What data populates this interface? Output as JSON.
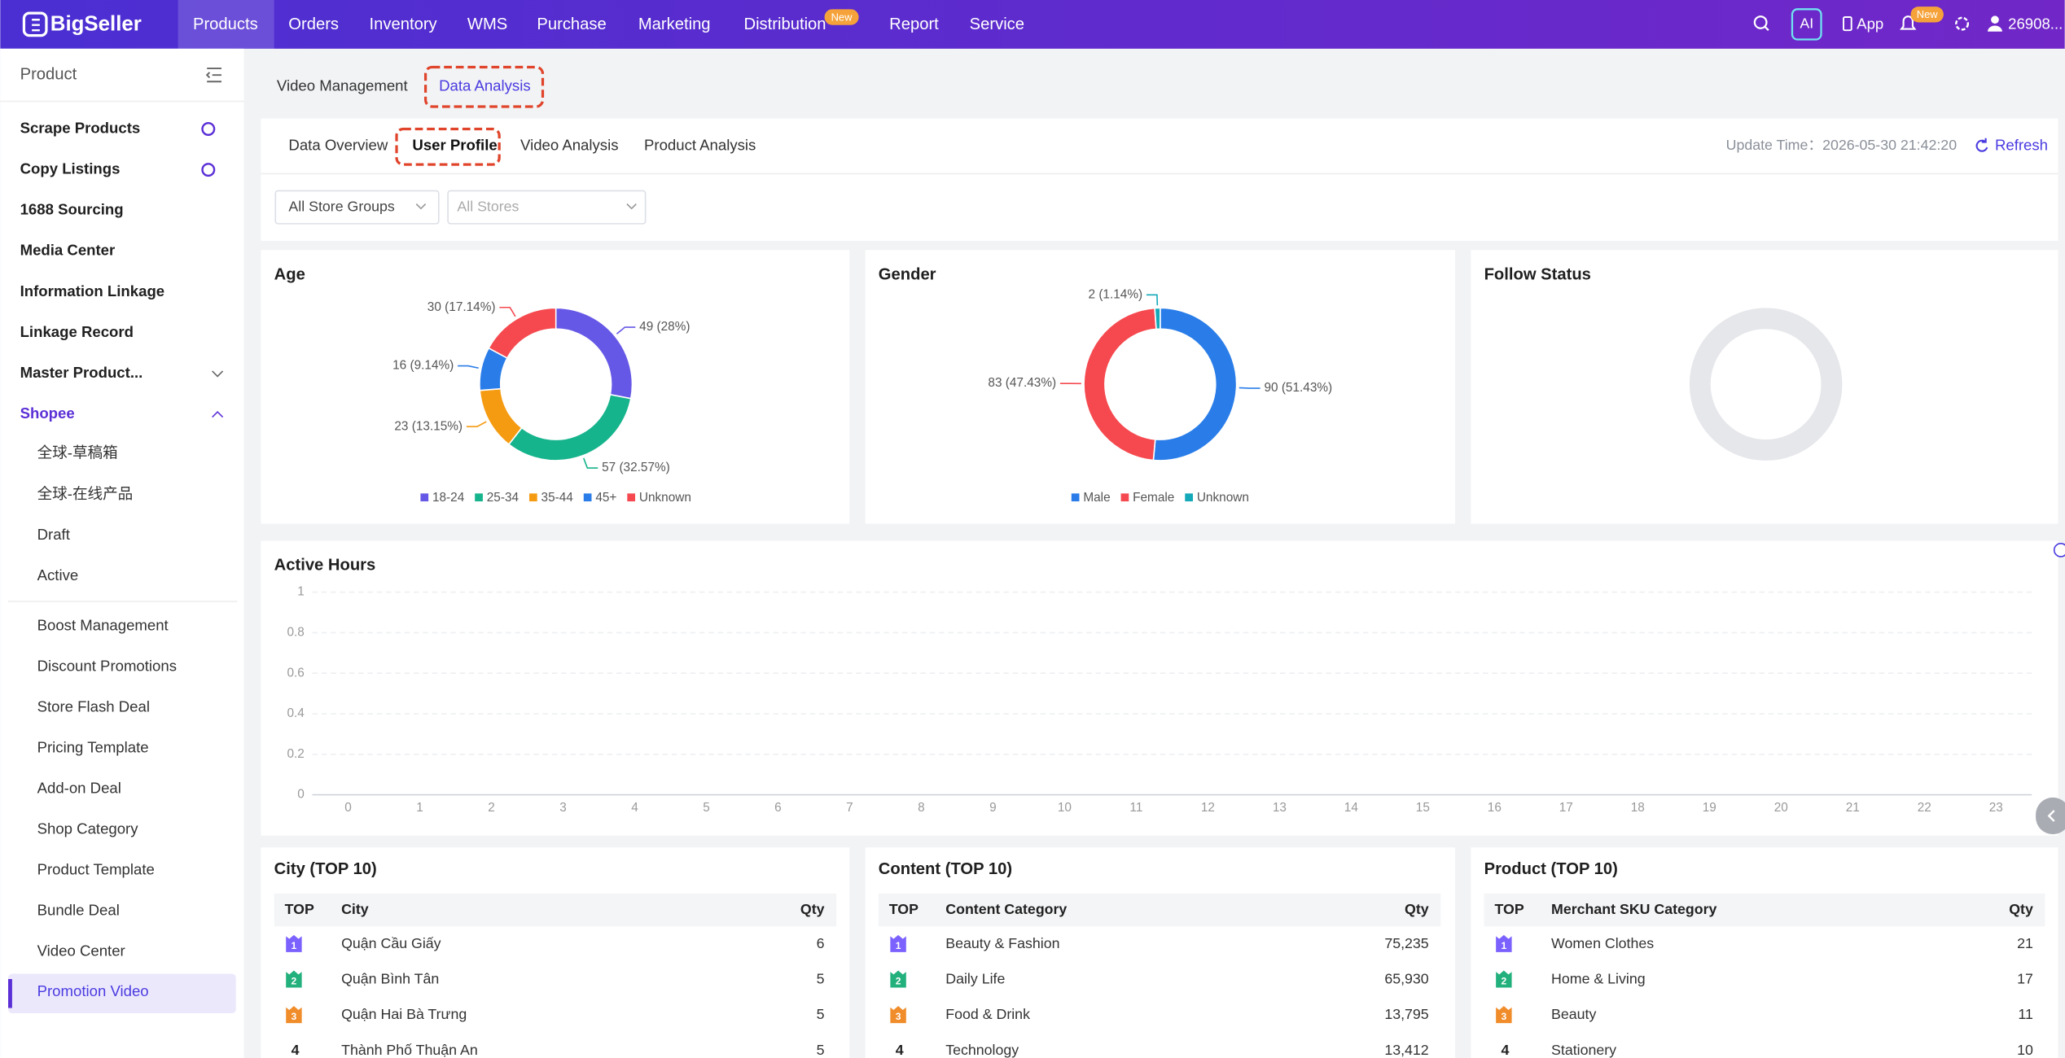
{
  "nav": {
    "logo": "BigSeller",
    "items": [
      "Products",
      "Orders",
      "Inventory",
      "WMS",
      "Purchase",
      "Marketing",
      "Distribution",
      "Report",
      "Service"
    ],
    "badge": "New",
    "ai": "AI",
    "app": "App",
    "bell_badge": "New",
    "user": "26908..."
  },
  "sidebar": {
    "title": "Product",
    "items": [
      "Scrape Products",
      "Copy Listings",
      "1688 Sourcing",
      "Media Center",
      "Information Linkage",
      "Linkage Record",
      "Master Product...",
      "Shopee"
    ],
    "group_items": [
      "全球-草稿箱",
      "全球-在线产品",
      "Draft",
      "Active"
    ],
    "more_items": [
      "Boost Management",
      "Discount Promotions",
      "Store Flash Deal",
      "Pricing Template",
      "Add-on Deal",
      "Shop Category",
      "Product Template",
      "Bundle Deal",
      "Video Center",
      "Promotion Video"
    ]
  },
  "tabs": [
    "Video Management",
    "Data Analysis"
  ],
  "subtabs": [
    "Data Overview",
    "User Profile",
    "Video Analysis",
    "Product Analysis"
  ],
  "update_time": "Update Time：2026-05-30 21:42:20",
  "refresh": "Refresh",
  "filters": [
    "All Store Groups",
    "All Stores"
  ],
  "chart_data": [
    {
      "type": "pie",
      "title": "Age",
      "categories": [
        "18-24",
        "25-34",
        "35-44",
        "45+",
        "Unknown"
      ],
      "values": [
        49,
        57,
        23,
        16,
        30
      ],
      "value_labels": [
        "49 (28%)",
        "57 (32.57%)",
        "23 (13.15%)",
        "16 (9.14%)",
        "30 (17.14%)"
      ],
      "colors": [
        "#6658e6",
        "#16b48c",
        "#f59b12",
        "#2a7de8",
        "#f5494f"
      ]
    },
    {
      "type": "pie",
      "title": "Gender",
      "categories": [
        "Male",
        "Female",
        "Unknown"
      ],
      "values": [
        90,
        83,
        2
      ],
      "value_labels": [
        "90 (51.43%)",
        "83 (47.43%)",
        "2 (1.14%)"
      ],
      "colors": [
        "#2a7de8",
        "#f5494f",
        "#14a9b9"
      ]
    },
    {
      "type": "pie",
      "title": "Follow Status",
      "categories": [],
      "values": [],
      "colors": []
    },
    {
      "type": "line",
      "title": "Active Hours",
      "categories": [
        "0",
        "1",
        "2",
        "3",
        "4",
        "5",
        "6",
        "7",
        "8",
        "9",
        "10",
        "11",
        "12",
        "13",
        "14",
        "15",
        "16",
        "17",
        "18",
        "19",
        "20",
        "21",
        "22",
        "23"
      ],
      "series": [],
      "ylim": [
        0,
        1
      ],
      "yticks": [
        0,
        0.2,
        0.4,
        0.6,
        0.8,
        1
      ],
      "grid": true
    }
  ],
  "tables": [
    {
      "title": "City (TOP 10)",
      "columns": [
        "TOP",
        "City",
        "Qty"
      ],
      "rows": [
        [
          "1",
          "Quận Cầu Giấy",
          "6"
        ],
        [
          "2",
          "Quận Bình Tân",
          "5"
        ],
        [
          "3",
          "Quận Hai Bà Trưng",
          "5"
        ],
        [
          "4",
          "Thành Phố Thuận An",
          "5"
        ]
      ]
    },
    {
      "title": "Content (TOP 10)",
      "columns": [
        "TOP",
        "Content Category",
        "Qty"
      ],
      "rows": [
        [
          "1",
          "Beauty & Fashion",
          "75,235"
        ],
        [
          "2",
          "Daily Life",
          "65,930"
        ],
        [
          "3",
          "Food & Drink",
          "13,795"
        ],
        [
          "4",
          "Technology",
          "13,412"
        ]
      ]
    },
    {
      "title": "Product (TOP 10)",
      "columns": [
        "TOP",
        "Merchant SKU Category",
        "Qty"
      ],
      "rows": [
        [
          "1",
          "Women Clothes",
          "21"
        ],
        [
          "2",
          "Home & Living",
          "17"
        ],
        [
          "3",
          "Beauty",
          "11"
        ],
        [
          "4",
          "Stationery",
          "10"
        ]
      ]
    }
  ]
}
